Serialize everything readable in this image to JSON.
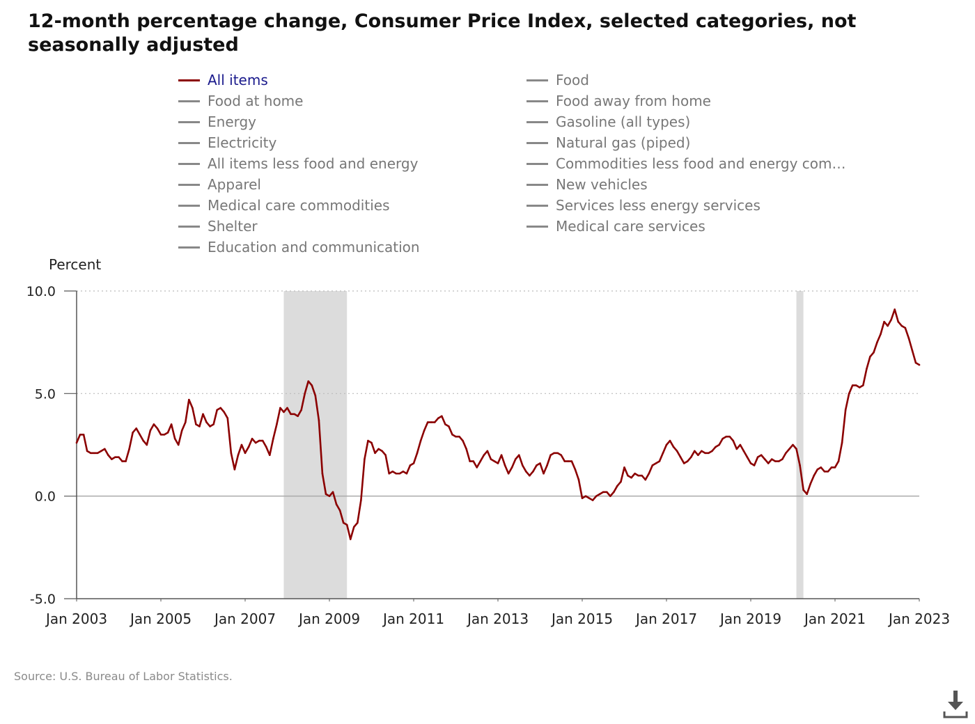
{
  "title": "12-month percentage change, Consumer Price Index, selected categories, not seasonally adjusted",
  "legend": [
    {
      "label": "All items",
      "active": true
    },
    {
      "label": "Food",
      "active": false
    },
    {
      "label": "Food at home",
      "active": false
    },
    {
      "label": "Food away from home",
      "active": false
    },
    {
      "label": "Energy",
      "active": false
    },
    {
      "label": "Gasoline (all types)",
      "active": false
    },
    {
      "label": "Electricity",
      "active": false
    },
    {
      "label": "Natural gas (piped)",
      "active": false
    },
    {
      "label": "All items less food and energy",
      "active": false
    },
    {
      "label": "Commodities less food and energy com…",
      "active": false
    },
    {
      "label": "Apparel",
      "active": false
    },
    {
      "label": "New vehicles",
      "active": false
    },
    {
      "label": "Medical care commodities",
      "active": false
    },
    {
      "label": "Services less energy services",
      "active": false
    },
    {
      "label": "Shelter",
      "active": false
    },
    {
      "label": "Medical care services",
      "active": false
    },
    {
      "label": "Education and communication",
      "active": false
    }
  ],
  "source": "Source: U.S. Bureau of Labor Statistics.",
  "icons": {
    "download": "download-icon"
  },
  "colors": {
    "line": "#8b0000",
    "recession": "#dcdcdc",
    "grid": "#bbbbbb",
    "axis": "#555555",
    "active_legend_text": "#1a1a8c"
  },
  "chart_data": {
    "type": "line",
    "title": "12-month percentage change, Consumer Price Index, selected categories, not seasonally adjusted",
    "ylabel": "Percent",
    "xlabel": "",
    "ylim": [
      -5.0,
      10.0
    ],
    "yticks": [
      "10.0",
      "5.0",
      "0.0",
      "-5.0"
    ],
    "xticks": [
      "Jan 2003",
      "Jan 2005",
      "Jan 2007",
      "Jan 2009",
      "Jan 2011",
      "Jan 2013",
      "Jan 2015",
      "Jan 2017",
      "Jan 2019",
      "Jan 2021",
      "Jan 2023"
    ],
    "xlim": [
      "2003-01",
      "2023-01"
    ],
    "grid": "dotted horizontal at 10.0 and 5.0",
    "recession_shading": [
      {
        "start": "2007-12",
        "end": "2009-06"
      },
      {
        "start": "2020-02",
        "end": "2020-04"
      }
    ],
    "series": [
      {
        "name": "All items",
        "color": "#8b0000",
        "start": "2003-01",
        "frequency": "monthly",
        "values": [
          2.6,
          3.0,
          3.0,
          2.2,
          2.1,
          2.1,
          2.1,
          2.2,
          2.3,
          2.0,
          1.8,
          1.9,
          1.9,
          1.7,
          1.7,
          2.3,
          3.1,
          3.3,
          3.0,
          2.7,
          2.5,
          3.2,
          3.5,
          3.3,
          3.0,
          3.0,
          3.1,
          3.5,
          2.8,
          2.5,
          3.2,
          3.6,
          4.7,
          4.3,
          3.5,
          3.4,
          4.0,
          3.6,
          3.4,
          3.5,
          4.2,
          4.3,
          4.1,
          3.8,
          2.1,
          1.3,
          2.0,
          2.5,
          2.1,
          2.4,
          2.8,
          2.6,
          2.7,
          2.7,
          2.4,
          2.0,
          2.8,
          3.5,
          4.3,
          4.1,
          4.3,
          4.0,
          4.0,
          3.9,
          4.2,
          5.0,
          5.6,
          5.4,
          4.9,
          3.7,
          1.1,
          0.1,
          0.0,
          0.2,
          -0.4,
          -0.7,
          -1.3,
          -1.4,
          -2.1,
          -1.5,
          -1.3,
          -0.2,
          1.8,
          2.7,
          2.6,
          2.1,
          2.3,
          2.2,
          2.0,
          1.1,
          1.2,
          1.1,
          1.1,
          1.2,
          1.1,
          1.5,
          1.6,
          2.1,
          2.7,
          3.2,
          3.6,
          3.6,
          3.6,
          3.8,
          3.9,
          3.5,
          3.4,
          3.0,
          2.9,
          2.9,
          2.7,
          2.3,
          1.7,
          1.7,
          1.4,
          1.7,
          2.0,
          2.2,
          1.8,
          1.7,
          1.6,
          2.0,
          1.5,
          1.1,
          1.4,
          1.8,
          2.0,
          1.5,
          1.2,
          1.0,
          1.2,
          1.5,
          1.6,
          1.1,
          1.5,
          2.0,
          2.1,
          2.1,
          2.0,
          1.7,
          1.7,
          1.7,
          1.3,
          0.8,
          -0.1,
          0.0,
          -0.1,
          -0.2,
          0.0,
          0.1,
          0.2,
          0.2,
          0.0,
          0.2,
          0.5,
          0.7,
          1.4,
          1.0,
          0.9,
          1.1,
          1.0,
          1.0,
          0.8,
          1.1,
          1.5,
          1.6,
          1.7,
          2.1,
          2.5,
          2.7,
          2.4,
          2.2,
          1.9,
          1.6,
          1.7,
          1.9,
          2.2,
          2.0,
          2.2,
          2.1,
          2.1,
          2.2,
          2.4,
          2.5,
          2.8,
          2.9,
          2.9,
          2.7,
          2.3,
          2.5,
          2.2,
          1.9,
          1.6,
          1.5,
          1.9,
          2.0,
          1.8,
          1.6,
          1.8,
          1.7,
          1.7,
          1.8,
          2.1,
          2.3,
          2.5,
          2.3,
          1.5,
          0.3,
          0.1,
          0.6,
          1.0,
          1.3,
          1.4,
          1.2,
          1.2,
          1.4,
          1.4,
          1.7,
          2.6,
          4.2,
          5.0,
          5.4,
          5.4,
          5.3,
          5.4,
          6.2,
          6.8,
          7.0,
          7.5,
          7.9,
          8.5,
          8.3,
          8.6,
          9.1,
          8.5,
          8.3,
          8.2,
          7.7,
          7.1,
          6.5,
          6.4
        ]
      }
    ]
  }
}
